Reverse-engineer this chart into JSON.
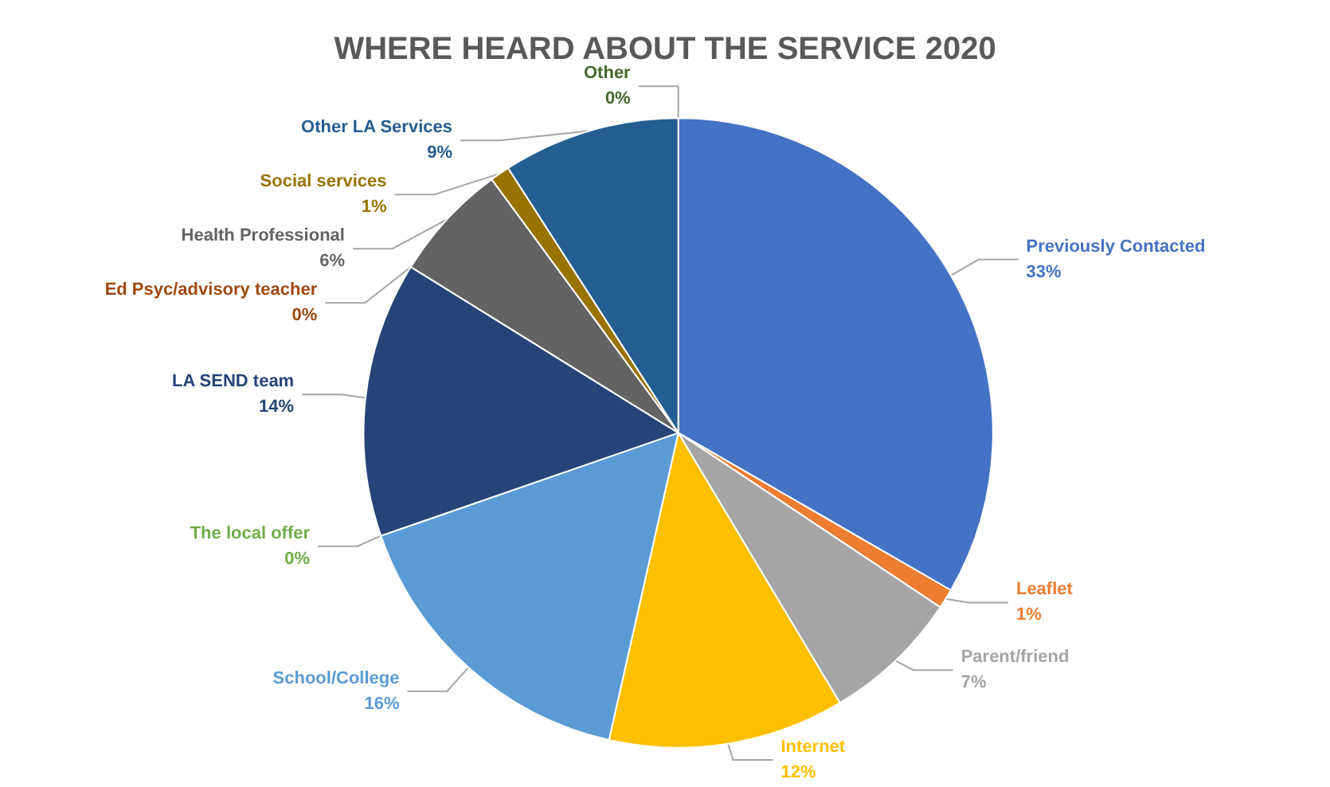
{
  "chart_data": {
    "type": "pie",
    "title": "WHERE HEARD ABOUT THE SERVICE 2020",
    "categories": [
      "Previously Contacted",
      "Leaflet",
      "Parent/friend",
      "Internet",
      "School/College",
      "The local offer",
      "LA SEND team",
      "Ed Psyc/advisory teacher",
      "Health Professional",
      "Social services",
      "Other LA Services",
      "Other"
    ],
    "values": [
      33,
      1,
      7,
      12,
      16,
      0,
      14,
      0,
      6,
      1,
      9,
      0
    ],
    "value_labels": [
      "33%",
      "1%",
      "7%",
      "12%",
      "16%",
      "0%",
      "14%",
      "0%",
      "6%",
      "1%",
      "9%",
      "0%"
    ],
    "colors": [
      "#4472c4",
      "#ed7d31",
      "#a5a5a5",
      "#ffc000",
      "#5b9bd5",
      "#70ad47",
      "#264478",
      "#9e480e",
      "#636363",
      "#997300",
      "#255e91",
      "#43682b"
    ]
  }
}
